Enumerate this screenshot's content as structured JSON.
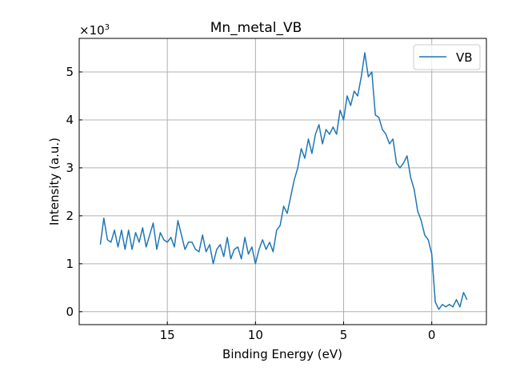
{
  "chart_data": {
    "type": "line",
    "title": "Mn_metal_VB",
    "xlabel": "Binding Energy (eV)",
    "ylabel": "Intensity (a.u.)",
    "y_offset_label": "×10",
    "y_offset_exponent": "3",
    "xlim": [
      20.0,
      -3.1
    ],
    "ylim": [
      -270,
      5700
    ],
    "x_inverted": true,
    "grid": true,
    "legend_position": "top-right",
    "x_ticks": [
      15,
      10,
      5,
      0
    ],
    "x_tick_labels": [
      "15",
      "10",
      "5",
      "0"
    ],
    "y_ticks": [
      0,
      1000,
      2000,
      3000,
      4000,
      5000
    ],
    "y_tick_labels": [
      "0",
      "1",
      "2",
      "3",
      "4",
      "5"
    ],
    "line_color": "#1f77b4",
    "series": [
      {
        "name": "VB",
        "x": [
          18.8,
          18.6,
          18.4,
          18.2,
          18.0,
          17.8,
          17.6,
          17.4,
          17.2,
          17.0,
          16.8,
          16.6,
          16.4,
          16.2,
          16.0,
          15.8,
          15.6,
          15.4,
          15.2,
          15.0,
          14.8,
          14.6,
          14.4,
          14.2,
          14.0,
          13.8,
          13.6,
          13.4,
          13.2,
          13.0,
          12.8,
          12.6,
          12.4,
          12.2,
          12.0,
          11.8,
          11.6,
          11.4,
          11.2,
          11.0,
          10.8,
          10.6,
          10.4,
          10.2,
          10.0,
          9.8,
          9.6,
          9.4,
          9.2,
          9.0,
          8.8,
          8.6,
          8.4,
          8.2,
          8.0,
          7.8,
          7.6,
          7.4,
          7.2,
          7.0,
          6.8,
          6.6,
          6.4,
          6.2,
          6.0,
          5.8,
          5.6,
          5.4,
          5.2,
          5.0,
          4.8,
          4.6,
          4.4,
          4.2,
          4.0,
          3.8,
          3.6,
          3.4,
          3.2,
          3.0,
          2.8,
          2.6,
          2.4,
          2.2,
          2.0,
          1.8,
          1.6,
          1.4,
          1.2,
          1.0,
          0.8,
          0.6,
          0.4,
          0.2,
          0.0,
          -0.2,
          -0.4,
          -0.6,
          -0.8,
          -1.0,
          -1.2,
          -1.4,
          -1.6,
          -1.8,
          -2.0
        ],
        "y": [
          1400,
          1950,
          1500,
          1450,
          1700,
          1350,
          1700,
          1300,
          1700,
          1300,
          1650,
          1450,
          1750,
          1350,
          1600,
          1850,
          1300,
          1650,
          1500,
          1450,
          1550,
          1350,
          1900,
          1600,
          1300,
          1450,
          1450,
          1300,
          1250,
          1600,
          1250,
          1400,
          1000,
          1300,
          1400,
          1150,
          1550,
          1100,
          1300,
          1350,
          1100,
          1550,
          1200,
          1350,
          1000,
          1300,
          1500,
          1300,
          1450,
          1250,
          1700,
          1800,
          2200,
          2050,
          2400,
          2750,
          3000,
          3400,
          3200,
          3600,
          3300,
          3700,
          3900,
          3500,
          3800,
          3700,
          3850,
          3700,
          4200,
          4000,
          4500,
          4300,
          4600,
          4500,
          4900,
          5400,
          4900,
          5000,
          4100,
          4050,
          3800,
          3700,
          3500,
          3600,
          3100,
          3000,
          3100,
          3250,
          2800,
          2550,
          2100,
          1900,
          1600,
          1500,
          1200,
          200,
          50,
          150,
          100,
          150,
          100,
          250,
          100,
          400,
          250
        ]
      }
    ]
  }
}
